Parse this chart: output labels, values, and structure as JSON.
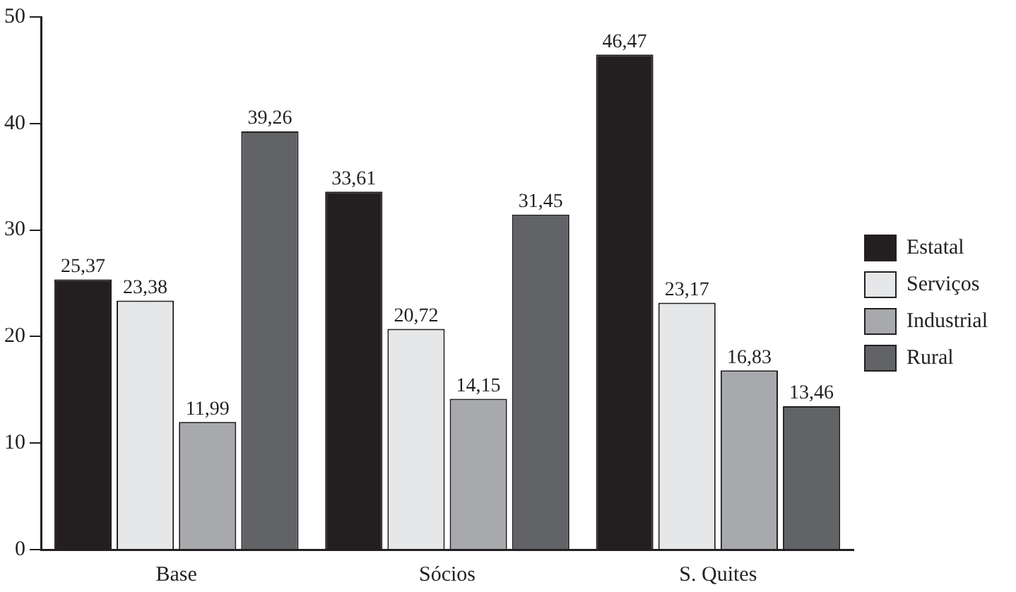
{
  "chart_data": {
    "type": "bar",
    "categories": [
      "Base",
      "Sócios",
      "S. Quites"
    ],
    "series": [
      {
        "name": "Estatal",
        "color": "#231f20",
        "values": [
          25.37,
          33.61,
          46.47
        ],
        "value_labels": [
          "25,37",
          "33,61",
          "46,47"
        ]
      },
      {
        "name": "Serviços",
        "color": "#e6e7e8",
        "values": [
          23.38,
          20.72,
          23.17
        ],
        "value_labels": [
          "23,38",
          "20,72",
          "23,17"
        ]
      },
      {
        "name": "Industrial",
        "color": "#a7a9ac",
        "values": [
          11.99,
          14.15,
          16.83
        ],
        "value_labels": [
          "11,99",
          "14,15",
          "16,83"
        ]
      },
      {
        "name": "Rural",
        "color": "#626366",
        "values": [
          39.26,
          31.45,
          13.46
        ],
        "value_labels": [
          "39,26",
          "31,45",
          "13,46"
        ]
      }
    ],
    "ylim": [
      0,
      50
    ],
    "yticks": [
      0,
      10,
      20,
      30,
      40,
      50
    ],
    "grid": false,
    "legend": "right"
  }
}
